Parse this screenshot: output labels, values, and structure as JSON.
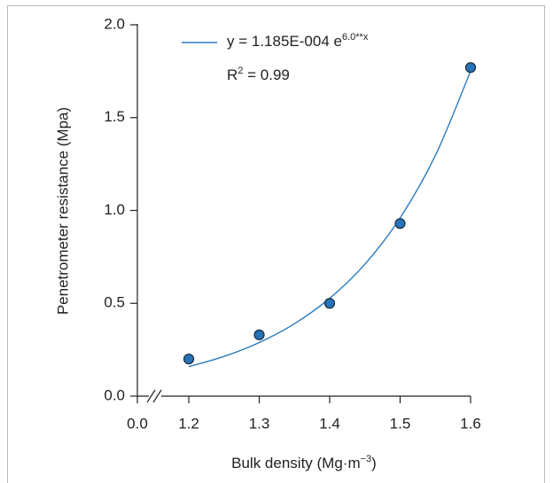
{
  "chart_data": {
    "type": "scatter",
    "x_label": "Bulk density (Mg·m",
    "x_label_sup": "−3",
    "x_label_end": ")",
    "y_label": "Penetrometer resistance (Mpa)",
    "xlim": [
      0.0,
      1.6
    ],
    "x_break": 1.127,
    "xticks": [
      {
        "value": 0.0,
        "label": "0.0"
      },
      1.2,
      1.3,
      1.4,
      1.5,
      1.6
    ],
    "ylim": [
      0.0,
      2.0
    ],
    "yticks": [
      {
        "value": 0.0,
        "label": "0.0"
      },
      0.5,
      {
        "value": 1.0,
        "label": "1.0"
      },
      1.5,
      {
        "value": 2.0,
        "label": "2.0"
      }
    ],
    "points": {
      "color": "#2673b8",
      "x": [
        1.2,
        1.3,
        1.4,
        1.5,
        1.6
      ],
      "values": [
        0.2,
        0.33,
        0.5,
        0.93,
        1.77
      ]
    },
    "fit": {
      "color": "#2b7bbf",
      "x": [
        1.2,
        1.25,
        1.3,
        1.35,
        1.4,
        1.45,
        1.5,
        1.55,
        1.6
      ],
      "values": [
        0.159,
        0.214,
        0.289,
        0.39,
        0.527,
        0.711,
        0.96,
        1.296,
        1.75
      ],
      "label": "y = 1.185E-004 e",
      "label_sup": "6.0**x",
      "r2_label": "R",
      "r2_sup": "2",
      "r2_value": " = 0.99"
    }
  }
}
